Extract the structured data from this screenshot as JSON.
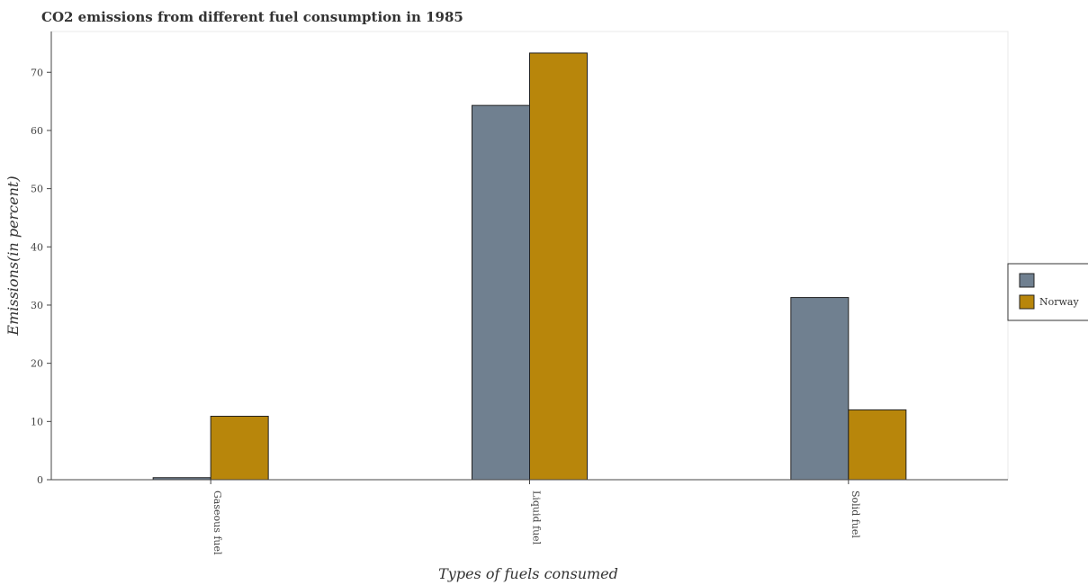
{
  "chart_data": {
    "type": "bar",
    "title": "CO2 emissions from different fuel consumption in 1985",
    "xlabel": "Types of fuels consumed",
    "ylabel": "Emissions(in percent)",
    "categories": [
      "Gaseous fuel",
      "Liquid fuel",
      "Solid fuel"
    ],
    "series": [
      {
        "name": "",
        "color": "#708090",
        "values": [
          0.35,
          64.3,
          31.3
        ]
      },
      {
        "name": "Norway",
        "color": "#b8860b",
        "values": [
          10.9,
          73.3,
          12.0
        ]
      }
    ],
    "ylim": [
      0,
      77
    ],
    "yticks": [
      0,
      10,
      20,
      30,
      40,
      50,
      60,
      70
    ],
    "grid": false,
    "legend_position": "right"
  }
}
